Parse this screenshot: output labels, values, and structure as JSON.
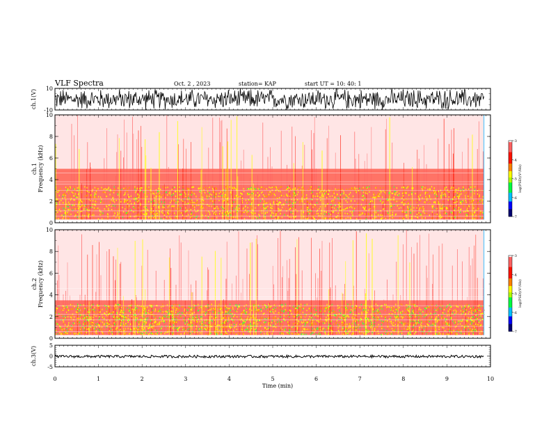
{
  "header": {
    "title": "VLF Spectra",
    "date": "Oct. 2 , 2023",
    "station": "station= KAP",
    "start": "start  UT  =   10: 40: 1"
  },
  "colors": {
    "scale": [
      "#000080",
      "#0000ff",
      "#00c0ff",
      "#00ff40",
      "#c0ff00",
      "#ffff00",
      "#ff8000",
      "#ff2000",
      "#ff4040",
      "#ff9090",
      "#ffffff"
    ]
  },
  "chart_data": [
    {
      "type": "line",
      "name": "ch1-waveform",
      "ylabel": "ch.1(V)",
      "ylim": [
        -10,
        10
      ],
      "y_ticks": [
        "10",
        "-10"
      ],
      "xlim": [
        0,
        10
      ],
      "description_values": {
        "min": -10,
        "max": 10
      }
    },
    {
      "type": "heatmap",
      "name": "ch1-spectrogram",
      "ylabel": "ch.1\nFrequency  (kHz)",
      "ylabel_lines": [
        "ch.1",
        "Frequency  (kHz)"
      ],
      "ylim": [
        0,
        10
      ],
      "y_ticks": [
        "0",
        "2",
        "4",
        "6",
        "8",
        "10"
      ],
      "xlim": [
        0,
        10
      ],
      "data_end_min": 9.85,
      "colorbar": {
        "label": "log(PSD)(V²/Hz)",
        "range": [
          -7,
          -3
        ],
        "ticks": [
          "-3",
          "-4",
          "-5",
          "-6",
          "-7"
        ]
      },
      "bands": [
        {
          "from_khz": 0.3,
          "to_khz": 3.5,
          "log_psd": -3.6
        },
        {
          "from_khz": 3.5,
          "to_khz": 5.0,
          "log_psd": -3.3
        },
        {
          "from_khz": 5.0,
          "to_khz": 10.0,
          "log_psd": -3.1
        }
      ]
    },
    {
      "type": "heatmap",
      "name": "ch2-spectrogram",
      "ylabel_lines": [
        "ch.2",
        "Frequency  (kHz)"
      ],
      "ylim": [
        0,
        10
      ],
      "y_ticks": [
        "0",
        "2",
        "4",
        "6",
        "8",
        "10"
      ],
      "xlim": [
        0,
        10
      ],
      "data_end_min": 9.85,
      "colorbar": {
        "label": "log(PSD)(V²/Hz)",
        "range": [
          -7,
          -3
        ],
        "ticks": [
          "-3",
          "-4",
          "-5",
          "-6",
          "-7"
        ]
      },
      "bands": [
        {
          "from_khz": 0.3,
          "to_khz": 2.0,
          "log_psd": -3.9
        },
        {
          "from_khz": 2.0,
          "to_khz": 3.5,
          "log_psd": -3.6
        },
        {
          "from_khz": 3.5,
          "to_khz": 10.0,
          "log_psd": -3.1
        }
      ]
    },
    {
      "type": "line",
      "name": "ch3-waveform",
      "ylabel": "ch.3(V)",
      "ylim": [
        -5,
        5
      ],
      "y_ticks": [
        "5",
        "0",
        "-5"
      ],
      "xlim": [
        0,
        10
      ],
      "description_values": {
        "center": -0.2,
        "half_width": 0.6
      }
    }
  ],
  "x_axis": {
    "label": "Time  (min)",
    "ticks": [
      "0",
      "1",
      "2",
      "3",
      "4",
      "5",
      "6",
      "7",
      "8",
      "9",
      "10"
    ]
  }
}
